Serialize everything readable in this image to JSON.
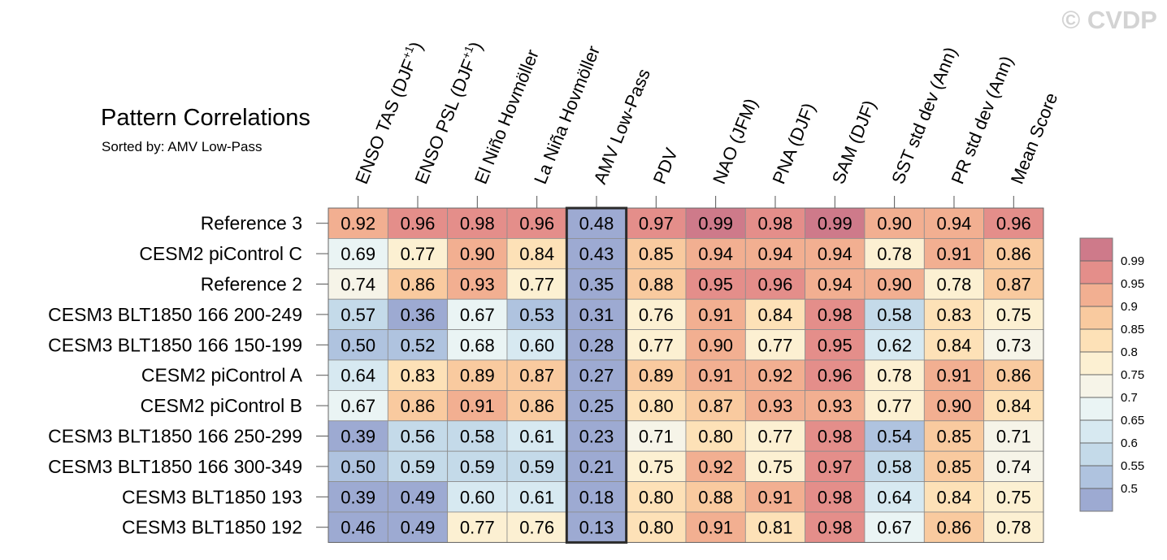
{
  "watermark": "© CVDP",
  "chart_data": {
    "type": "heatmap",
    "title": "Pattern Correlations",
    "subtitle": "Sorted by: AMV Low-Pass",
    "highlighted_column": "AMV Low-Pass",
    "columns": [
      {
        "text": "ENSO TAS (DJF",
        "sup": "+1",
        "tail": ")"
      },
      {
        "text": "ENSO PSL (DJF",
        "sup": "+1",
        "tail": ")"
      },
      {
        "text": "El Niño Hovmöller",
        "sup": "",
        "tail": ""
      },
      {
        "text": "La Niña Hovmöller",
        "sup": "",
        "tail": ""
      },
      {
        "text": "AMV Low-Pass",
        "sup": "",
        "tail": ""
      },
      {
        "text": "PDV",
        "sup": "",
        "tail": ""
      },
      {
        "text": "NAO (JFM)",
        "sup": "",
        "tail": ""
      },
      {
        "text": "PNA (DJF)",
        "sup": "",
        "tail": ""
      },
      {
        "text": "SAM (DJF)",
        "sup": "",
        "tail": ""
      },
      {
        "text": "SST std dev (Ann)",
        "sup": "",
        "tail": ""
      },
      {
        "text": "PR std dev (Ann)",
        "sup": "",
        "tail": ""
      },
      {
        "text": "Mean Score",
        "sup": "",
        "tail": ""
      }
    ],
    "rows": [
      "Reference 3",
      "CESM2 piControl C",
      "Reference 2",
      "CESM3 BLT1850 166 200-249",
      "CESM3 BLT1850 166 150-199",
      "CESM2 piControl A",
      "CESM2 piControl B",
      "CESM3 BLT1850 166 250-299",
      "CESM3 BLT1850 166 300-349",
      "CESM3 BLT1850 193",
      "CESM3 BLT1850 192"
    ],
    "values": [
      [
        "0.92",
        "0.96",
        "0.98",
        "0.96",
        "0.48",
        "0.97",
        "0.99",
        "0.98",
        "0.99",
        "0.90",
        "0.94",
        "0.96"
      ],
      [
        "0.69",
        "0.77",
        "0.90",
        "0.84",
        "0.43",
        "0.85",
        "0.94",
        "0.94",
        "0.94",
        "0.78",
        "0.91",
        "0.86"
      ],
      [
        "0.74",
        "0.86",
        "0.93",
        "0.77",
        "0.35",
        "0.88",
        "0.95",
        "0.96",
        "0.94",
        "0.90",
        "0.78",
        "0.87"
      ],
      [
        "0.57",
        "0.36",
        "0.67",
        "0.53",
        "0.31",
        "0.76",
        "0.91",
        "0.84",
        "0.98",
        "0.58",
        "0.83",
        "0.75"
      ],
      [
        "0.50",
        "0.52",
        "0.68",
        "0.60",
        "0.28",
        "0.77",
        "0.90",
        "0.77",
        "0.95",
        "0.62",
        "0.84",
        "0.73"
      ],
      [
        "0.64",
        "0.83",
        "0.89",
        "0.87",
        "0.27",
        "0.89",
        "0.91",
        "0.92",
        "0.96",
        "0.78",
        "0.91",
        "0.86"
      ],
      [
        "0.67",
        "0.86",
        "0.91",
        "0.86",
        "0.25",
        "0.80",
        "0.87",
        "0.93",
        "0.93",
        "0.77",
        "0.90",
        "0.84"
      ],
      [
        "0.39",
        "0.56",
        "0.58",
        "0.61",
        "0.23",
        "0.71",
        "0.80",
        "0.77",
        "0.98",
        "0.54",
        "0.85",
        "0.71"
      ],
      [
        "0.50",
        "0.59",
        "0.59",
        "0.59",
        "0.21",
        "0.75",
        "0.92",
        "0.75",
        "0.97",
        "0.58",
        "0.85",
        "0.74"
      ],
      [
        "0.39",
        "0.49",
        "0.60",
        "0.61",
        "0.18",
        "0.80",
        "0.88",
        "0.91",
        "0.98",
        "0.64",
        "0.84",
        "0.75"
      ],
      [
        "0.46",
        "0.49",
        "0.77",
        "0.76",
        "0.13",
        "0.80",
        "0.91",
        "0.81",
        "0.98",
        "0.67",
        "0.86",
        "0.78"
      ]
    ],
    "colorbar": {
      "levels": [
        "0.99",
        "0.95",
        "0.9",
        "0.85",
        "0.8",
        "0.75",
        "0.7",
        "0.65",
        "0.6",
        "0.55",
        "0.5"
      ],
      "colors_low_to_high": [
        "#9daad2",
        "#afc3df",
        "#c4dae9",
        "#d7e9f1",
        "#eaf4f4",
        "#f6f4e8",
        "#fcf0d2",
        "#fde1b7",
        "#f9ca9f",
        "#f2af91",
        "#e48e8a",
        "#ce7a8a"
      ]
    }
  }
}
